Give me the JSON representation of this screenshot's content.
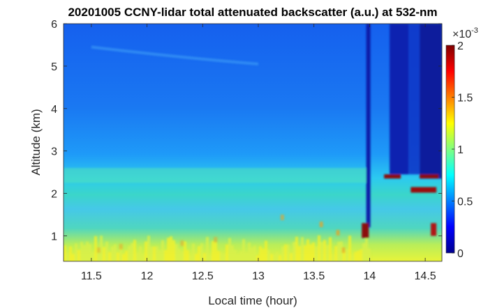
{
  "chart_data": {
    "type": "heatmap",
    "title": "20201005 CCNY-lidar total attenuated backscatter (a.u.) at 532-nm",
    "xlabel": "Local time (hour)",
    "ylabel": "Altitude (km)",
    "xlim": [
      11.25,
      14.65
    ],
    "ylim": [
      0.4,
      6
    ],
    "xticks": [
      "11.5",
      "12",
      "12.5",
      "13",
      "13.5",
      "14",
      "14.5"
    ],
    "xtick_values": [
      11.5,
      12,
      12.5,
      13,
      13.5,
      14,
      14.5
    ],
    "yticks": [
      "1",
      "2",
      "3",
      "4",
      "5",
      "6"
    ],
    "ytick_values": [
      1,
      2,
      3,
      4,
      5,
      6
    ],
    "colorbar": {
      "colormap": "jet",
      "clim": [
        0,
        0.002
      ],
      "exponent_label": "×10",
      "exponent_power": "-3",
      "ticks": [
        "0",
        "0.5",
        "1",
        "1.5",
        "2"
      ],
      "tick_values": [
        0,
        0.5,
        1,
        1.5,
        2
      ]
    },
    "grid": false,
    "features": [
      {
        "kind": "boundary_layer_top",
        "altitude_km": 2.4,
        "time_range": [
          11.25,
          14.65
        ]
      },
      {
        "kind": "aerosol_layer",
        "altitude_km": 5.3,
        "time_range": [
          11.5,
          13.0
        ]
      },
      {
        "kind": "cloud_layer",
        "altitude_km": 2.4,
        "time_range": [
          14.1,
          14.6
        ]
      },
      {
        "kind": "no_signal_columns",
        "times": [
          14.0,
          14.23,
          14.45
        ]
      }
    ]
  }
}
